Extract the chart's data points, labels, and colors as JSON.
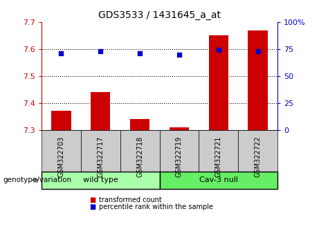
{
  "title": "GDS3533 / 1431645_a_at",
  "samples": [
    "GSM322703",
    "GSM322717",
    "GSM322718",
    "GSM322719",
    "GSM322721",
    "GSM322722"
  ],
  "bar_values": [
    7.37,
    7.44,
    7.34,
    7.31,
    7.65,
    7.67
  ],
  "bar_baseline": 7.3,
  "percentile_values": [
    71,
    73,
    71,
    70,
    74,
    73
  ],
  "bar_color": "#cc0000",
  "dot_color": "#0000cc",
  "ylim_left": [
    7.3,
    7.7
  ],
  "ylim_right": [
    0,
    100
  ],
  "yticks_left": [
    7.3,
    7.4,
    7.5,
    7.6,
    7.7
  ],
  "yticks_right": [
    0,
    25,
    50,
    75,
    100
  ],
  "ytick_labels_right": [
    "0",
    "25",
    "50",
    "75",
    "100%"
  ],
  "grid_values": [
    7.4,
    7.5,
    7.6
  ],
  "groups": [
    {
      "label": "wild type",
      "indices": [
        0,
        1,
        2
      ],
      "color": "#aaffaa"
    },
    {
      "label": "Cav-3 null",
      "indices": [
        3,
        4,
        5
      ],
      "color": "#66ee66"
    }
  ],
  "genotype_label": "genotype/variation",
  "legend_items": [
    {
      "label": "transformed count",
      "color": "#cc0000"
    },
    {
      "label": "percentile rank within the sample",
      "color": "#0000cc"
    }
  ],
  "background_color": "#ffffff",
  "sample_box_color": "#cccccc",
  "left_label_color": "#cc0000",
  "right_label_color": "#0000cc"
}
